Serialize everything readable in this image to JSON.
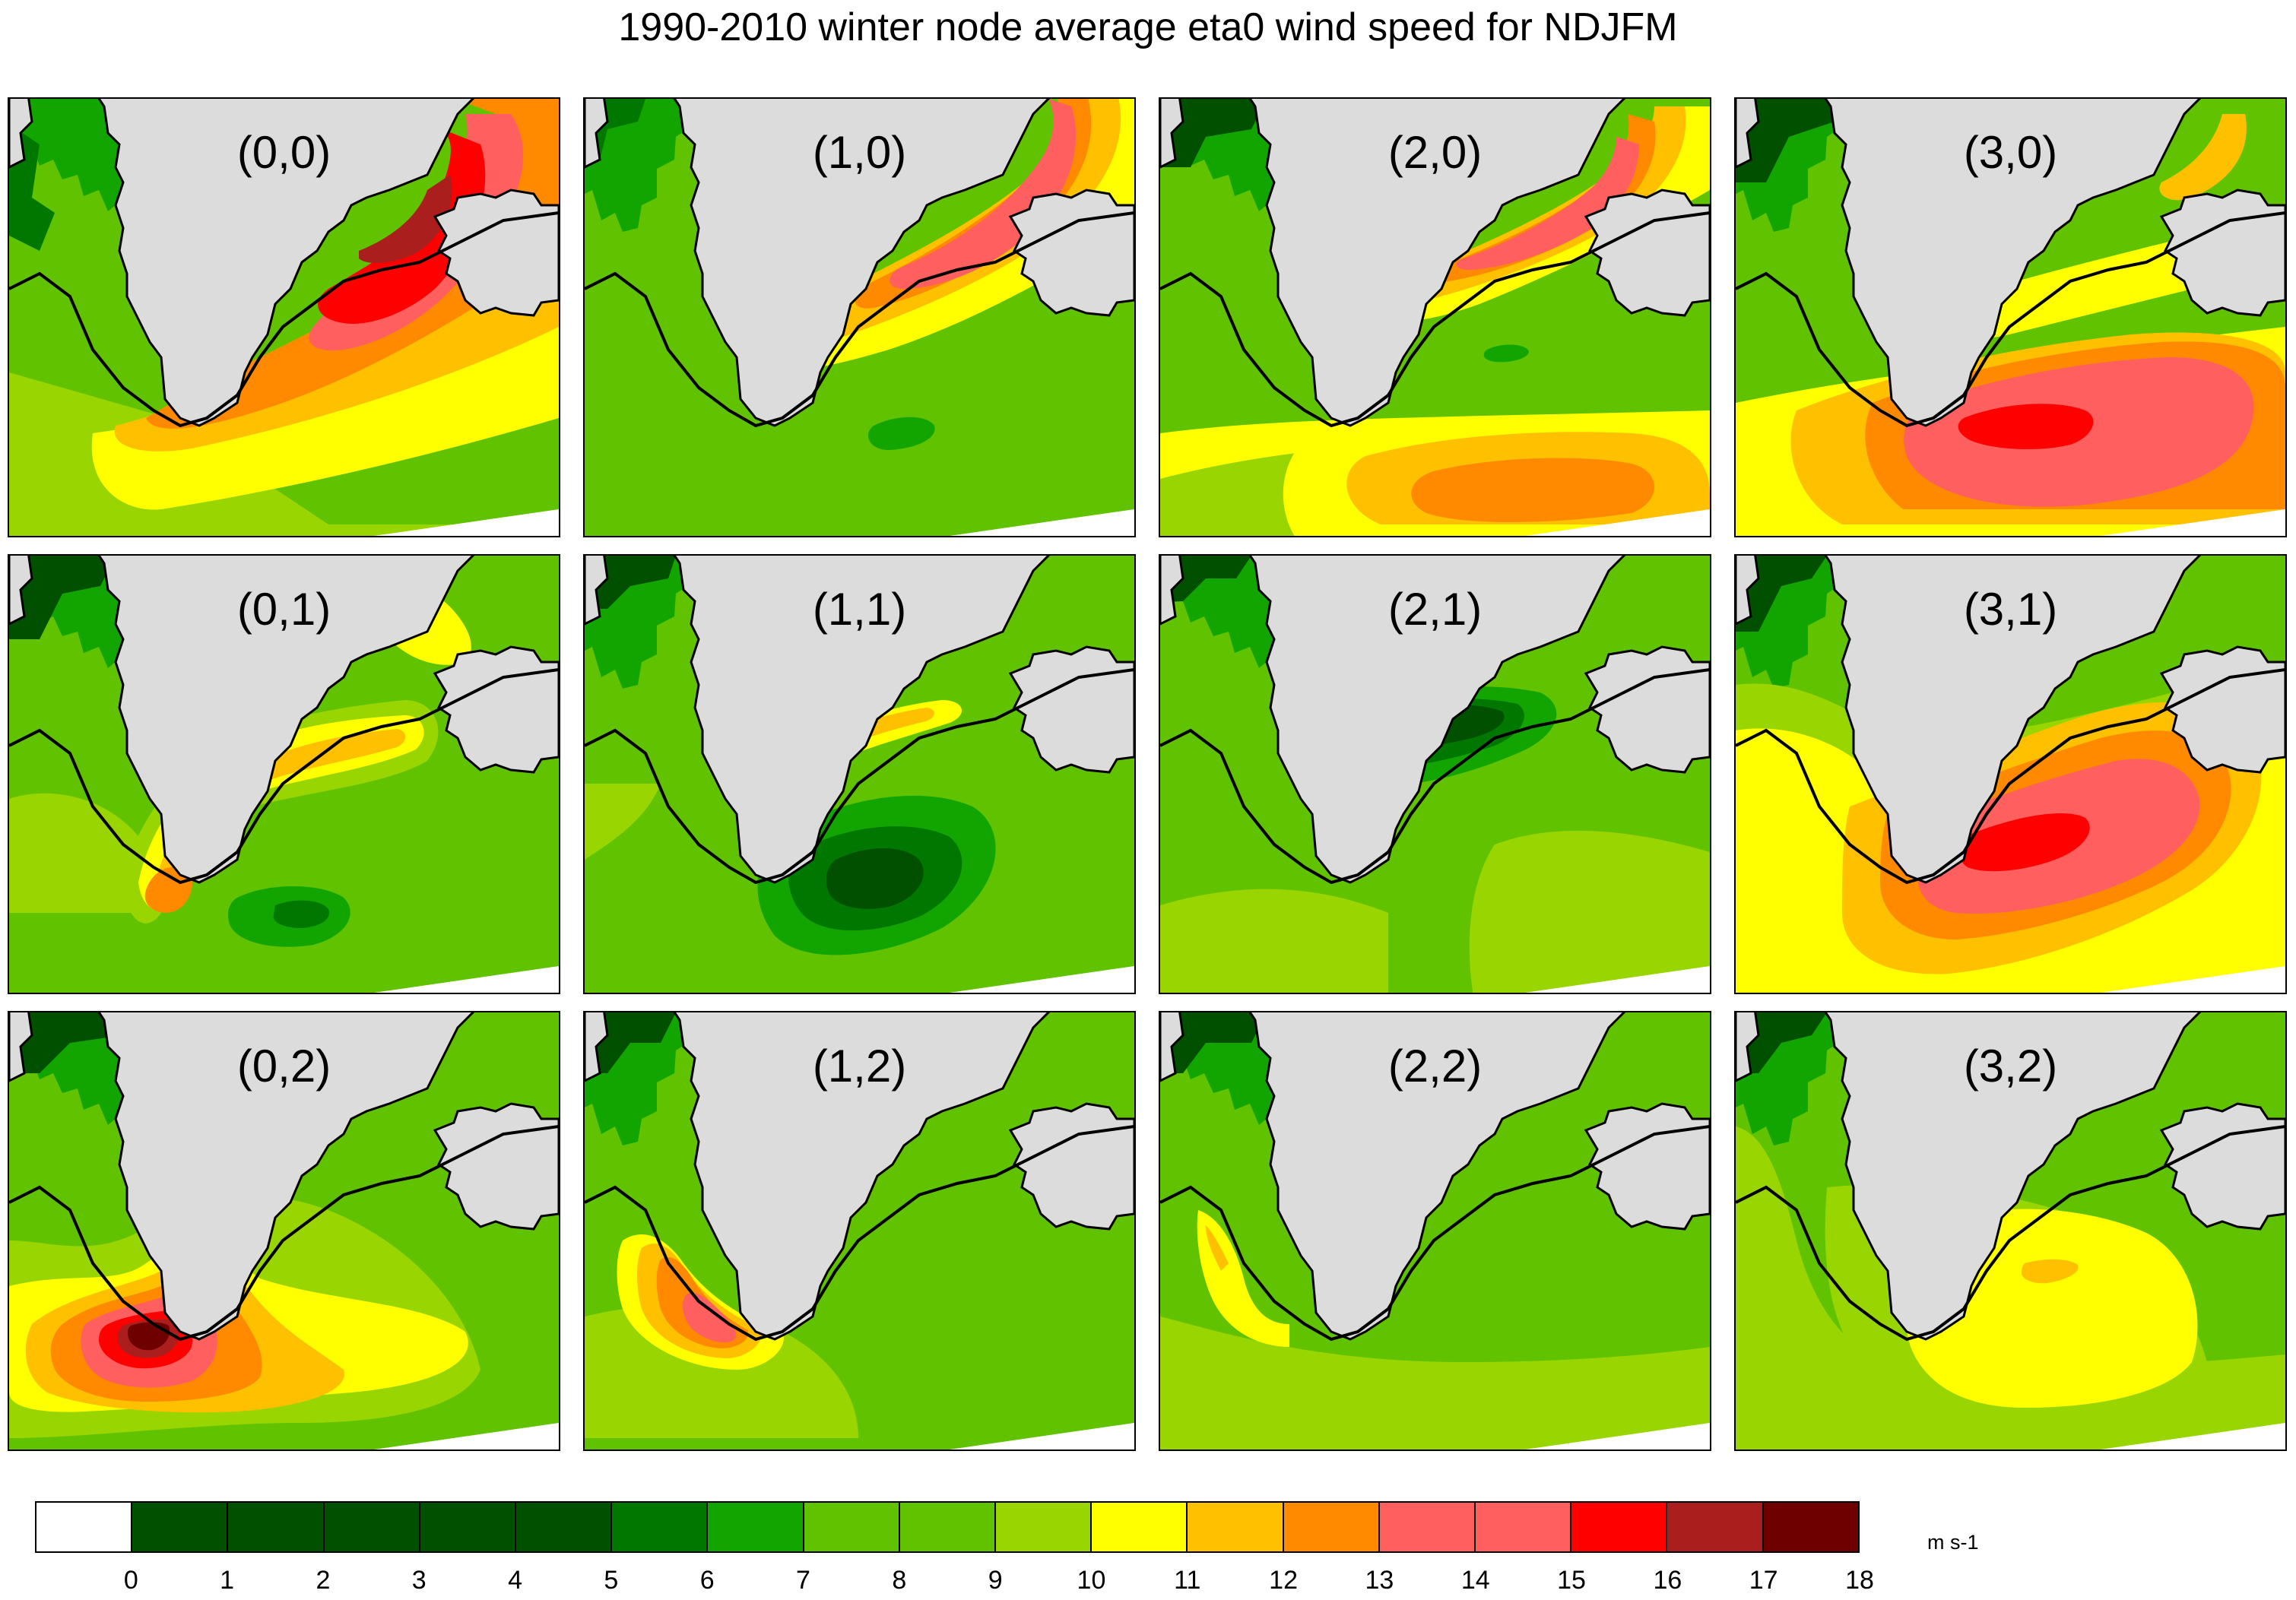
{
  "title": "1990-2010 winter node average eta0 wind speed for NDJFM",
  "units": "m s-1",
  "colorbar": {
    "tick_labels": [
      "0",
      "1",
      "2",
      "3",
      "4",
      "5",
      "6",
      "7",
      "8",
      "9",
      "10",
      "11",
      "12",
      "13",
      "14",
      "15",
      "16",
      "17",
      "18"
    ],
    "colors": [
      "#ffffff",
      "#005000",
      "#005000",
      "#005000",
      "#005000",
      "#005000",
      "#007800",
      "#12a500",
      "#61c200",
      "#61c200",
      "#99d500",
      "#ffff00",
      "#ffc000",
      "#ff8a00",
      "#ff5f5f",
      "#ff5f5f",
      "#ff0000",
      "#aa1e1e",
      "#6e0000"
    ],
    "land_color": "#dcdcdc"
  },
  "panels": [
    {
      "label": "(0,0)",
      "peak": "17-18 m s-1",
      "peak_location": "Denmark Strait / southeast Greenland coast"
    },
    {
      "label": "(1,0)",
      "peak": "15-17 m s-1",
      "peak_location": "southeast Greenland coast"
    },
    {
      "label": "(2,0)",
      "peak": "15-16 m s-1",
      "peak_location": "southeast Greenland coast"
    },
    {
      "label": "(3,0)",
      "peak": "16-17 m s-1",
      "peak_location": "south of Cape Farewell"
    },
    {
      "label": "(0,1)",
      "peak": "13-14 m s-1",
      "peak_location": "southeast coast and Cape Farewell"
    },
    {
      "label": "(1,1)",
      "peak": "12-13 m s-1",
      "peak_location": "southeast coast"
    },
    {
      "label": "(2,1)",
      "peak": "9-10 m s-1",
      "peak_location": "open ocean"
    },
    {
      "label": "(3,1)",
      "peak": "16-17 m s-1",
      "peak_location": "southeast of Cape Farewell"
    },
    {
      "label": "(0,2)",
      "peak": "17-18 m s-1",
      "peak_location": "Cape Farewell tip"
    },
    {
      "label": "(1,2)",
      "peak": "14-15 m s-1",
      "peak_location": "Cape Farewell tip"
    },
    {
      "label": "(2,2)",
      "peak": "11-12 m s-1",
      "peak_location": "southwest Greenland coast"
    },
    {
      "label": "(3,2)",
      "peak": "12-13 m s-1",
      "peak_location": "central North Atlantic"
    }
  ]
}
